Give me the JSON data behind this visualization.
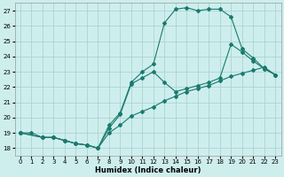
{
  "xlabel": "Humidex (Indice chaleur)",
  "background_color": "#ceeeed",
  "grid_color": "#aad4d3",
  "line_color": "#1a7a6e",
  "xlim": [
    -0.5,
    23.5
  ],
  "ylim": [
    17.5,
    27.5
  ],
  "xticks": [
    0,
    1,
    2,
    3,
    4,
    5,
    6,
    7,
    8,
    9,
    10,
    11,
    12,
    13,
    14,
    15,
    16,
    17,
    18,
    19,
    20,
    21,
    22,
    23
  ],
  "yticks": [
    18,
    19,
    20,
    21,
    22,
    23,
    24,
    25,
    26,
    27
  ],
  "curve1_x": [
    0,
    1,
    2,
    3,
    4,
    5,
    6,
    7,
    8,
    9,
    10,
    11,
    12,
    13,
    14,
    15,
    16,
    17,
    18,
    19,
    20,
    21,
    22,
    23
  ],
  "curve1_y": [
    19.0,
    19.0,
    18.7,
    18.7,
    18.5,
    18.3,
    18.2,
    18.0,
    19.5,
    20.3,
    22.3,
    23.0,
    23.5,
    26.2,
    27.1,
    27.2,
    27.0,
    27.1,
    27.1,
    26.6,
    24.5,
    23.9,
    23.2,
    22.8
  ],
  "curve2_x": [
    0,
    2,
    3,
    4,
    5,
    6,
    7,
    8,
    9,
    10,
    11,
    12,
    13,
    14,
    15,
    16,
    17,
    18,
    19,
    20,
    21,
    22,
    23
  ],
  "curve2_y": [
    19.0,
    18.7,
    18.7,
    18.5,
    18.3,
    18.2,
    18.0,
    19.0,
    19.5,
    20.1,
    20.4,
    20.7,
    21.1,
    21.4,
    21.7,
    21.9,
    22.1,
    22.4,
    22.7,
    22.9,
    23.1,
    23.3,
    22.8
  ],
  "curve3_x": [
    0,
    2,
    3,
    4,
    5,
    6,
    7,
    8,
    9,
    10,
    11,
    12,
    13,
    14,
    15,
    16,
    17,
    18,
    19,
    20,
    21,
    22,
    23
  ],
  "curve3_y": [
    19.0,
    18.7,
    18.7,
    18.5,
    18.3,
    18.2,
    18.0,
    19.3,
    20.2,
    22.2,
    22.6,
    23.0,
    22.3,
    21.7,
    21.9,
    22.1,
    22.3,
    22.6,
    24.8,
    24.3,
    23.7,
    23.2,
    22.8
  ]
}
